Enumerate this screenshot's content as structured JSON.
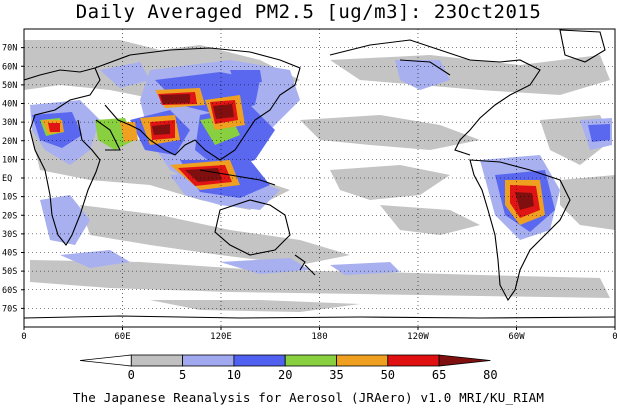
{
  "title": "Daily Averaged PM2.5 [ug/m3]: 23Oct2015",
  "credit": "The Japanese Reanalysis for Aerosol (JRAero) v1.0 MRI/KU_RIAM",
  "map": {
    "lat_labels": [
      "70N",
      "60N",
      "50N",
      "40N",
      "30N",
      "20N",
      "10N",
      "EQ",
      "10S",
      "20S",
      "30S",
      "40S",
      "50S",
      "60S",
      "70S"
    ],
    "lon_labels": [
      "0",
      "60E",
      "120E",
      "180",
      "120W",
      "60W",
      "0"
    ],
    "grid": true,
    "ocean_color": "#ffffff",
    "coastline_color": "#000000"
  },
  "colorbar": {
    "ticks": [
      "0",
      "5",
      "10",
      "20",
      "35",
      "50",
      "65",
      "80"
    ],
    "colors": [
      "#ffffff",
      "#c0c0c0",
      "#a0a8f0",
      "#5060f0",
      "#88d040",
      "#f0a020",
      "#e01010",
      "#801010"
    ]
  }
}
